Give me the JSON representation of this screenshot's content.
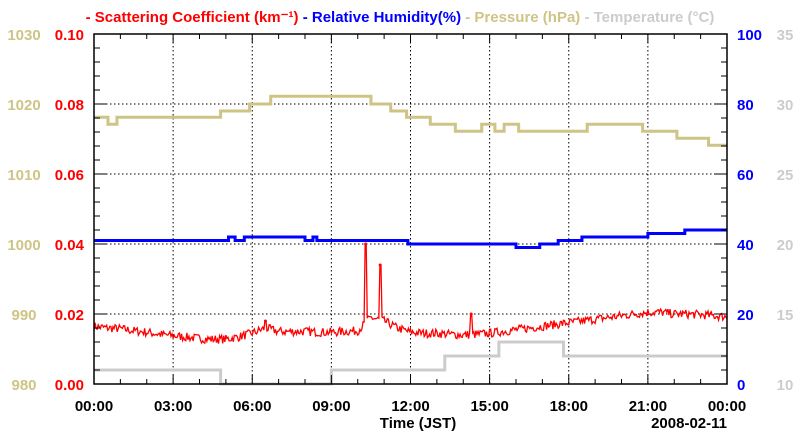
{
  "chart_data": {
    "type": "line",
    "title": "",
    "legend": [
      {
        "label": "Scattering Coefficient (km⁻¹)",
        "color": "#ff0000"
      },
      {
        "label": "Relative Humidity(%)",
        "color": "#0000ff"
      },
      {
        "label": "Pressure (hPa)",
        "color": "#cdc486"
      },
      {
        "label": "Temperature (°C)",
        "color": "#cccccc"
      }
    ],
    "legend_placement": "top",
    "xlabel": "Time (JST)",
    "date_label": "2008-02-11",
    "x_range_hours": [
      0,
      24
    ],
    "x_ticks": [
      "00:00",
      "03:00",
      "06:00",
      "09:00",
      "12:00",
      "15:00",
      "18:00",
      "21:00",
      "00:00"
    ],
    "grid": true,
    "axes": {
      "pressure": {
        "side": "left-outer",
        "range": [
          980,
          1030
        ],
        "ticks": [
          "980",
          "990",
          "1000",
          "1010",
          "1020",
          "1030"
        ],
        "color": "#cdc486"
      },
      "scattering": {
        "side": "left-inner",
        "range": [
          0,
          0.1
        ],
        "ticks": [
          "0.00",
          "0.02",
          "0.04",
          "0.06",
          "0.08",
          "0.10"
        ],
        "color": "#ff0000"
      },
      "humidity": {
        "side": "right-inner",
        "range": [
          0,
          100
        ],
        "ticks": [
          "0",
          "20",
          "40",
          "60",
          "80",
          "100"
        ],
        "color": "#0000ff"
      },
      "temperature": {
        "side": "right-outer",
        "range": [
          10,
          35
        ],
        "ticks": [
          "10",
          "15",
          "20",
          "25",
          "30",
          "35"
        ],
        "color": "#cccccc"
      }
    },
    "series": [
      {
        "name": "Scattering Coefficient",
        "axis": "scattering",
        "kind": "noisy",
        "x_hours": [
          0,
          0.5,
          1,
          1.5,
          2,
          2.5,
          3,
          3.5,
          4,
          4.5,
          5,
          5.5,
          6,
          6.5,
          7,
          7.5,
          8,
          8.5,
          9,
          9.5,
          10,
          10.5,
          11,
          11.5,
          12,
          12.5,
          13,
          13.5,
          14,
          14.5,
          15,
          15.5,
          16,
          16.5,
          17,
          17.5,
          18,
          18.5,
          19,
          19.5,
          20,
          20.5,
          21,
          21.5,
          22,
          22.5,
          23,
          23.5,
          24
        ],
        "values": [
          0.0165,
          0.016,
          0.0158,
          0.0152,
          0.0148,
          0.0142,
          0.0138,
          0.0134,
          0.013,
          0.0128,
          0.0128,
          0.0135,
          0.0145,
          0.016,
          0.015,
          0.015,
          0.015,
          0.0148,
          0.0148,
          0.015,
          0.0152,
          0.019,
          0.018,
          0.016,
          0.0148,
          0.0145,
          0.0145,
          0.0142,
          0.014,
          0.0142,
          0.0145,
          0.015,
          0.0155,
          0.016,
          0.0165,
          0.017,
          0.0175,
          0.018,
          0.0185,
          0.019,
          0.0195,
          0.02,
          0.0205,
          0.0205,
          0.02,
          0.02,
          0.0198,
          0.0195,
          0.0192
        ],
        "spikes": [
          {
            "x": 6.5,
            "y": 0.018
          },
          {
            "x": 10.3,
            "y": 0.04
          },
          {
            "x": 10.85,
            "y": 0.034
          },
          {
            "x": 14.3,
            "y": 0.02
          }
        ]
      },
      {
        "name": "Relative Humidity",
        "axis": "humidity",
        "kind": "step",
        "steps": [
          [
            0,
            41
          ],
          [
            5.1,
            42
          ],
          [
            5.35,
            41
          ],
          [
            5.7,
            42
          ],
          [
            8.0,
            41
          ],
          [
            8.3,
            42
          ],
          [
            8.45,
            41
          ],
          [
            11.9,
            40
          ],
          [
            16.0,
            39
          ],
          [
            16.9,
            40
          ],
          [
            17.6,
            41
          ],
          [
            18.5,
            42
          ],
          [
            21.0,
            43
          ],
          [
            22.4,
            44
          ]
        ]
      },
      {
        "name": "Pressure",
        "axis": "pressure",
        "kind": "step",
        "steps": [
          [
            0,
            1018.1
          ],
          [
            0.53,
            1017.1
          ],
          [
            0.87,
            1018.1
          ],
          [
            4.8,
            1019
          ],
          [
            5.9,
            1020
          ],
          [
            6.7,
            1021.1
          ],
          [
            10.5,
            1020
          ],
          [
            11.25,
            1019
          ],
          [
            11.85,
            1018.1
          ],
          [
            12.75,
            1017.1
          ],
          [
            13.7,
            1016.1
          ],
          [
            14.7,
            1017.1
          ],
          [
            15.2,
            1016.1
          ],
          [
            15.55,
            1017.1
          ],
          [
            16.1,
            1016.1
          ],
          [
            18.7,
            1017.1
          ],
          [
            20.8,
            1016.1
          ],
          [
            22.1,
            1015.1
          ],
          [
            23.3,
            1014.1
          ]
        ]
      },
      {
        "name": "Temperature",
        "axis": "temperature",
        "kind": "step",
        "steps": [
          [
            0,
            11
          ],
          [
            4.8,
            10
          ],
          [
            9.0,
            11
          ],
          [
            13.3,
            12
          ],
          [
            15.35,
            13
          ],
          [
            17.8,
            12
          ]
        ]
      }
    ]
  }
}
